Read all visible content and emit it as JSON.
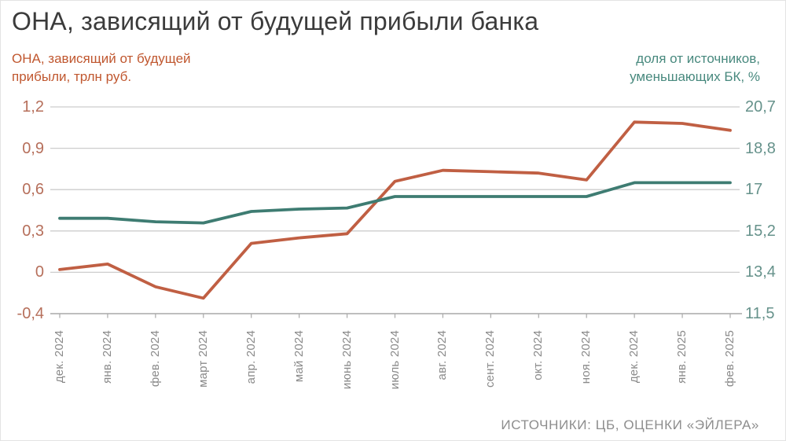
{
  "title": "ОНА, зависящий от будущей прибыли банка",
  "source": "ИСТОЧНИКИ: ЦБ, ОЦЕНКИ «ЭЙЛЕРА»",
  "chart_data": {
    "type": "line",
    "title": "ОНА, зависящий от будущей прибыли банка",
    "grid": true,
    "legend_position": "axis-titles-top",
    "categories": [
      "дек. 2024",
      "янв. 2024",
      "фев. 2024",
      "март 2024",
      "апр. 2024",
      "май 2024",
      "июнь 2024",
      "июль 2024",
      "авг. 2024",
      "сент. 2024",
      "окт. 2024",
      "ноя. 2024",
      "дек. 2024",
      "янв. 2025",
      "фев. 2025"
    ],
    "left_axis": {
      "title_line1": "ОНА, зависящий от будущей",
      "title_line2": "прибыли, трлн руб.",
      "text_color": "#c0572f",
      "tick_color": "#b66f5b",
      "tick_labels": [
        "1,2",
        "0,9",
        "0,6",
        "0,3",
        "0",
        "-0,4"
      ],
      "grid_values": [
        1.2,
        0.9,
        0.6,
        0.3,
        0,
        -0.4
      ],
      "ylim": [
        -0.4,
        1.2
      ]
    },
    "right_axis": {
      "title_line1": "доля от источников,",
      "title_line2": "уменьшающих БК, %",
      "text_color": "#48897e",
      "tick_color": "#66928b",
      "tick_labels": [
        "20,7",
        "18,8",
        "17",
        "15,2",
        "13,4",
        "11,5"
      ],
      "grid_values": [
        20.7,
        18.8,
        17,
        15.2,
        13.4,
        11.5
      ],
      "ylim": [
        11.5,
        20.7
      ]
    },
    "series": [
      {
        "name": "ОНА, зависящий от будущей прибыли, трлн руб.",
        "axis": "left_axis",
        "color": "#c05f43",
        "values": [
          0.02,
          0.06,
          -0.14,
          -0.25,
          0.21,
          0.25,
          0.28,
          0.66,
          0.74,
          0.73,
          0.72,
          0.67,
          1.09,
          1.08,
          1.03
        ]
      },
      {
        "name": "доля от источников, уменьшающих БК, %",
        "axis": "right_axis",
        "color": "#3e7c72",
        "values": [
          15.75,
          15.75,
          15.6,
          15.55,
          16.05,
          16.15,
          16.2,
          16.7,
          16.7,
          16.7,
          16.7,
          16.7,
          17.3,
          17.3,
          17.3
        ]
      }
    ],
    "grid_color": "#cdcdcd",
    "axis_line_color": "#a9a9a9"
  }
}
